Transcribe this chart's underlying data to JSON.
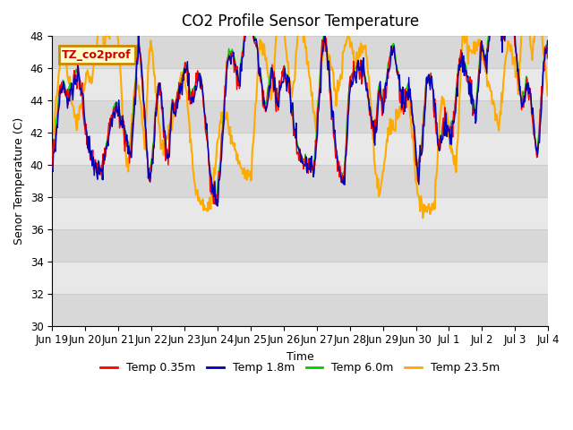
{
  "title": "CO2 Profile Sensor Temperature",
  "xlabel": "Time",
  "ylabel": "Senor Temperature (C)",
  "ylim": [
    30,
    48
  ],
  "xlim": [
    0,
    15.5
  ],
  "legend_label": "TZ_co2prof",
  "series_labels": [
    "Temp 0.35m",
    "Temp 1.8m",
    "Temp 6.0m",
    "Temp 23.5m"
  ],
  "series_colors": [
    "#ff0000",
    "#0000bb",
    "#00cc00",
    "#ffaa00"
  ],
  "series_linewidths": [
    1.0,
    1.0,
    1.0,
    1.5
  ],
  "x_tick_labels": [
    "Jun 19",
    "Jun 20",
    "Jun 21",
    "Jun 22",
    "Jun 23",
    "Jun 24",
    "Jun 25",
    "Jun 26",
    "Jun 27",
    "Jun 28",
    "Jun 29",
    "Jun 30",
    "Jul 1",
    "Jul 2",
    "Jul 3",
    "Jul 4"
  ],
  "background_color": "#ffffff",
  "plot_bg_color": "#e0e0e0",
  "grid_color": "#f0f0f0",
  "title_fontsize": 12,
  "label_fontsize": 9,
  "tick_fontsize": 8.5,
  "yticks": [
    30,
    32,
    34,
    36,
    38,
    40,
    42,
    44,
    46,
    48
  ]
}
